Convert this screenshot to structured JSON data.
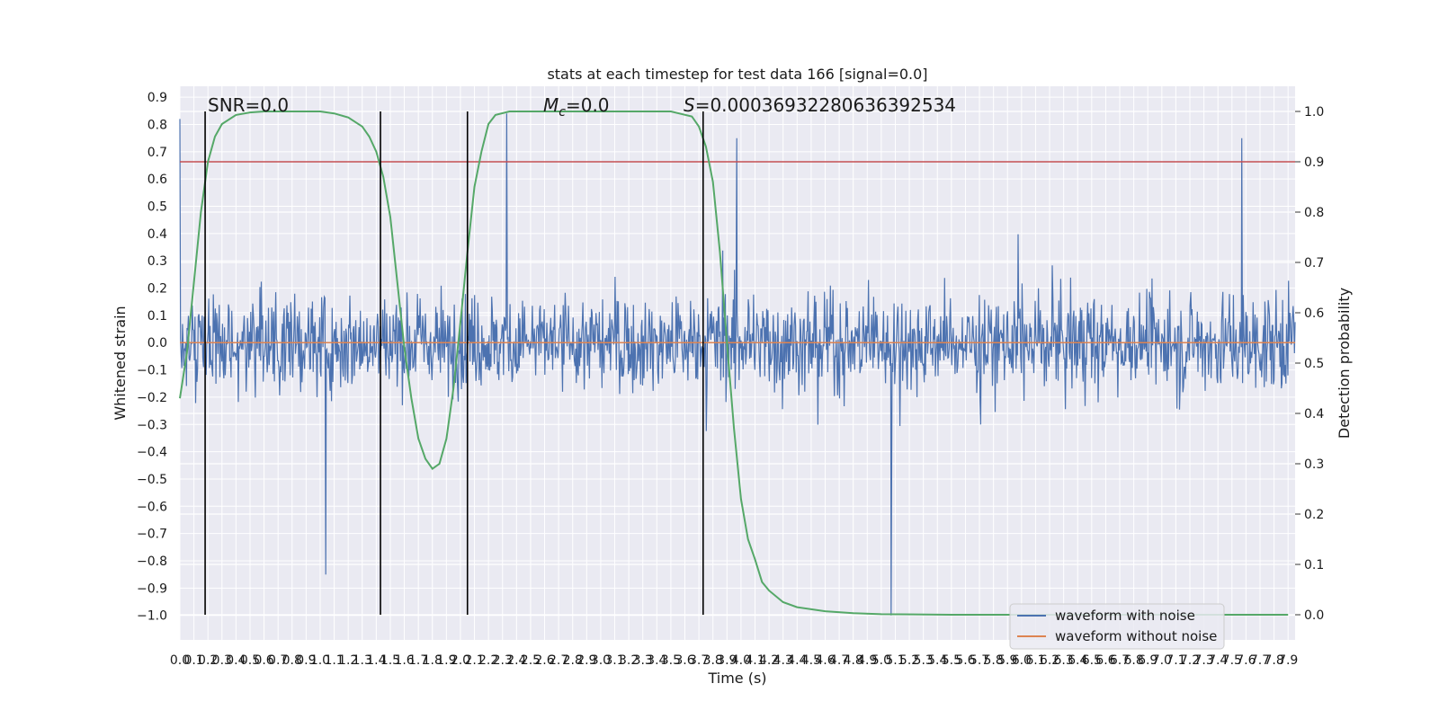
{
  "chart_data": {
    "type": "line",
    "title": "stats at each timestep for test data 166 [signal=0.0]",
    "xlabel": "Time (s)",
    "ylabel_left": "Whitened strain",
    "ylabel_right": "Detection probability",
    "xlim": [
      0.0,
      7.95
    ],
    "ylim_left": [
      -1.09,
      0.94
    ],
    "ylim_right": [
      -0.05,
      1.05
    ],
    "grid": true,
    "legend_position": "lower-right",
    "x_ticks": [
      "0.0",
      "0.1",
      "0.2",
      "0.3",
      "0.4",
      "0.5",
      "0.6",
      "0.7",
      "0.8",
      "0.9",
      "1.0",
      "1.1",
      "1.2",
      "1.3",
      "1.4",
      "1.5",
      "1.6",
      "1.7",
      "1.8",
      "1.9",
      "2.0",
      "2.1",
      "2.2",
      "2.3",
      "2.4",
      "2.5",
      "2.6",
      "2.7",
      "2.8",
      "2.9",
      "3.0",
      "3.1",
      "3.2",
      "3.3",
      "3.4",
      "3.5",
      "3.6",
      "3.7",
      "3.8",
      "3.9",
      "4.0",
      "4.1",
      "4.2",
      "4.3",
      "4.4",
      "4.5",
      "4.6",
      "4.7",
      "4.8",
      "4.9",
      "5.0",
      "5.1",
      "5.2",
      "5.3",
      "5.4",
      "5.5",
      "5.6",
      "5.7",
      "5.8",
      "5.9",
      "6.0",
      "6.1",
      "6.2",
      "6.3",
      "6.4",
      "6.5",
      "6.6",
      "6.7",
      "6.8",
      "6.9",
      "7.0",
      "7.1",
      "7.2",
      "7.3",
      "7.4",
      "7.5",
      "7.6",
      "7.7",
      "7.8",
      "7.9"
    ],
    "y_ticks_left": [
      "−1.0",
      "−0.9",
      "−0.8",
      "−0.7",
      "−0.6",
      "−0.5",
      "−0.4",
      "−0.3",
      "−0.2",
      "−0.1",
      "0.0",
      "0.1",
      "0.2",
      "0.3",
      "0.4",
      "0.5",
      "0.6",
      "0.7",
      "0.8",
      "0.9"
    ],
    "y_ticks_right": [
      "0.0",
      "0.1",
      "0.2",
      "0.3",
      "0.4",
      "0.5",
      "0.6",
      "0.7",
      "0.8",
      "0.9",
      "1.0"
    ],
    "annotations": {
      "snr": "SNR=0.0",
      "mc": "=0.0",
      "s": "=0.00036932280636392534"
    },
    "series": [
      {
        "name": "waveform with noise",
        "axis": "left",
        "color": "#4c72b0",
        "description": "dense noise, envelope roughly -0.6..0.6 with spikes",
        "x_range": [
          0.0,
          7.95
        ],
        "spikes": [
          [
            0.0,
            0.82
          ],
          [
            1.04,
            -0.85
          ],
          [
            2.33,
            0.84
          ],
          [
            3.97,
            0.75
          ],
          [
            5.07,
            -1.0
          ],
          [
            7.57,
            0.75
          ]
        ]
      },
      {
        "name": "waveform without noise",
        "axis": "left",
        "color": "#dd8452",
        "x": [
          0.0,
          7.95
        ],
        "y": [
          0.0,
          0.0
        ]
      },
      {
        "name": "",
        "axis": "right",
        "color": "#55a868",
        "x": [
          0.0,
          0.05,
          0.1,
          0.15,
          0.2,
          0.25,
          0.3,
          0.4,
          0.5,
          0.6,
          0.8,
          1.0,
          1.1,
          1.2,
          1.3,
          1.35,
          1.4,
          1.45,
          1.5,
          1.55,
          1.6,
          1.65,
          1.7,
          1.75,
          1.8,
          1.85,
          1.9,
          1.95,
          2.0,
          2.05,
          2.1,
          2.15,
          2.2,
          2.25,
          2.35,
          2.5,
          3.0,
          3.5,
          3.65,
          3.7,
          3.75,
          3.8,
          3.85,
          3.9,
          3.95,
          4.0,
          4.05,
          4.1,
          4.15,
          4.2,
          4.3,
          4.4,
          4.6,
          4.8,
          5.0,
          5.5,
          6.0,
          7.0,
          7.9
        ],
        "y": [
          0.43,
          0.52,
          0.66,
          0.8,
          0.9,
          0.95,
          0.975,
          0.993,
          0.998,
          1.0,
          1.0,
          1.0,
          0.996,
          0.988,
          0.97,
          0.95,
          0.92,
          0.87,
          0.79,
          0.66,
          0.53,
          0.43,
          0.35,
          0.31,
          0.29,
          0.3,
          0.35,
          0.45,
          0.58,
          0.72,
          0.85,
          0.92,
          0.975,
          0.993,
          1.0,
          1.0,
          1.0,
          1.0,
          0.99,
          0.97,
          0.93,
          0.86,
          0.72,
          0.54,
          0.37,
          0.23,
          0.15,
          0.11,
          0.065,
          0.048,
          0.025,
          0.015,
          0.007,
          0.003,
          0.001,
          0.0,
          0.0,
          0.0,
          0.0
        ]
      }
    ],
    "threshold": {
      "axis": "right",
      "value": 0.9,
      "color": "#c44e52"
    },
    "vertical_markers": {
      "color": "#000000",
      "x": [
        0.18,
        1.43,
        2.05,
        3.73
      ]
    }
  }
}
